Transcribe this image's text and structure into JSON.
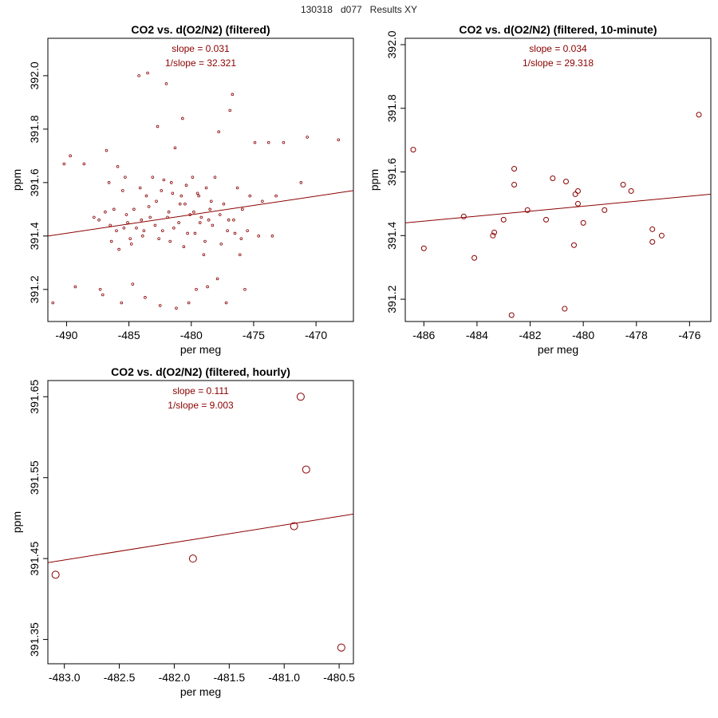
{
  "page_title": "130318   d077   Results XY",
  "colors": {
    "series": "#8b0000",
    "axes": "#000000",
    "background": "#ffffff"
  },
  "chart_data": [
    {
      "type": "scatter",
      "title": "CO2 vs. d(O2/N2) (filtered)",
      "xlabel": "per meg",
      "ylabel": "ppm",
      "xlim": [
        -491.5,
        -467.0
      ],
      "ylim": [
        391.08,
        392.14
      ],
      "xticks": [
        -490,
        -485,
        -480,
        -475,
        -470
      ],
      "yticks": [
        391.2,
        391.4,
        391.6,
        391.8,
        392.0
      ],
      "annotations": [
        "slope = 0.031",
        "1/slope = 32.321"
      ],
      "fit_line": {
        "x": [
          -491.5,
          -467.0
        ],
        "y": [
          391.4,
          391.57
        ]
      },
      "grid": false,
      "points": [
        [
          -491.1,
          391.15
        ],
        [
          -490.2,
          391.67
        ],
        [
          -489.7,
          391.7
        ],
        [
          -489.3,
          391.21
        ],
        [
          -488.6,
          391.67
        ],
        [
          -487.8,
          391.47
        ],
        [
          -487.4,
          391.46
        ],
        [
          -487.3,
          391.2
        ],
        [
          -487.1,
          391.18
        ],
        [
          -486.8,
          391.72
        ],
        [
          -486.6,
          391.6
        ],
        [
          -486.4,
          391.38
        ],
        [
          -486.2,
          391.5
        ],
        [
          -486.0,
          391.42
        ],
        [
          -485.9,
          391.66
        ],
        [
          -485.8,
          391.35
        ],
        [
          -485.6,
          391.15
        ],
        [
          -485.5,
          391.57
        ],
        [
          -485.3,
          391.62
        ],
        [
          -485.1,
          391.45
        ],
        [
          -484.9,
          391.39
        ],
        [
          -484.7,
          391.22
        ],
        [
          -484.6,
          391.5
        ],
        [
          -484.4,
          391.43
        ],
        [
          -484.2,
          392.0
        ],
        [
          -484.1,
          391.58
        ],
        [
          -483.9,
          391.4
        ],
        [
          -483.7,
          391.17
        ],
        [
          -483.6,
          391.55
        ],
        [
          -483.5,
          392.01
        ],
        [
          -483.3,
          391.47
        ],
        [
          -483.1,
          391.62
        ],
        [
          -482.9,
          391.44
        ],
        [
          -482.8,
          391.53
        ],
        [
          -482.7,
          391.81
        ],
        [
          -482.5,
          391.14
        ],
        [
          -482.3,
          391.42
        ],
        [
          -482.2,
          391.61
        ],
        [
          -482.0,
          391.97
        ],
        [
          -481.8,
          391.49
        ],
        [
          -481.7,
          391.38
        ],
        [
          -481.5,
          391.56
        ],
        [
          -481.3,
          391.73
        ],
        [
          -481.2,
          391.13
        ],
        [
          -481.0,
          391.45
        ],
        [
          -480.9,
          391.52
        ],
        [
          -480.7,
          391.84
        ],
        [
          -480.6,
          391.36
        ],
        [
          -480.4,
          391.59
        ],
        [
          -480.2,
          391.15
        ],
        [
          -480.1,
          391.48
        ],
        [
          -479.9,
          391.62
        ],
        [
          -479.7,
          391.41
        ],
        [
          -479.6,
          391.2
        ],
        [
          -479.4,
          391.55
        ],
        [
          -479.2,
          391.47
        ],
        [
          -479.0,
          391.33
        ],
        [
          -478.8,
          391.58
        ],
        [
          -478.7,
          391.21
        ],
        [
          -478.5,
          391.5
        ],
        [
          -478.3,
          391.44
        ],
        [
          -478.1,
          391.62
        ],
        [
          -477.9,
          391.24
        ],
        [
          -477.8,
          391.79
        ],
        [
          -477.6,
          391.37
        ],
        [
          -477.4,
          391.52
        ],
        [
          -477.2,
          391.15
        ],
        [
          -477.0,
          391.46
        ],
        [
          -476.9,
          391.87
        ],
        [
          -476.7,
          391.93
        ],
        [
          -476.5,
          391.41
        ],
        [
          -476.3,
          391.58
        ],
        [
          -476.1,
          391.33
        ],
        [
          -475.9,
          391.5
        ],
        [
          -475.7,
          391.2
        ],
        [
          -475.5,
          391.42
        ],
        [
          -475.3,
          391.55
        ],
        [
          -474.9,
          391.75
        ],
        [
          -474.6,
          391.4
        ],
        [
          -474.3,
          391.53
        ],
        [
          -473.8,
          391.75
        ],
        [
          -473.5,
          391.4
        ],
        [
          -473.2,
          391.55
        ],
        [
          -472.6,
          391.75
        ],
        [
          -471.2,
          391.6
        ],
        [
          -470.7,
          391.77
        ],
        [
          -468.2,
          391.76
        ],
        [
          -486.5,
          391.44
        ],
        [
          -485.2,
          391.48
        ],
        [
          -484.8,
          391.37
        ],
        [
          -484.0,
          391.46
        ],
        [
          -483.4,
          391.51
        ],
        [
          -482.6,
          391.39
        ],
        [
          -481.9,
          391.47
        ],
        [
          -481.4,
          391.43
        ],
        [
          -480.8,
          391.55
        ],
        [
          -480.3,
          391.41
        ],
        [
          -479.8,
          391.49
        ],
        [
          -479.3,
          391.45
        ],
        [
          -478.9,
          391.38
        ],
        [
          -478.4,
          391.53
        ],
        [
          -477.7,
          391.48
        ],
        [
          -477.1,
          391.42
        ],
        [
          -476.6,
          391.46
        ],
        [
          -476.0,
          391.39
        ],
        [
          -482.4,
          391.57
        ],
        [
          -481.6,
          391.6
        ],
        [
          -480.5,
          391.52
        ],
        [
          -479.5,
          391.56
        ],
        [
          -478.6,
          391.46
        ],
        [
          -483.8,
          391.42
        ],
        [
          -485.4,
          391.43
        ],
        [
          -486.9,
          391.49
        ]
      ]
    },
    {
      "type": "scatter",
      "title": "CO2 vs. d(O2/N2) (filtered, 10-minute)",
      "xlabel": "per meg",
      "ylabel": "ppm",
      "xlim": [
        -486.7,
        -475.2
      ],
      "ylim": [
        391.13,
        392.02
      ],
      "xticks": [
        -486,
        -484,
        -482,
        -480,
        -478,
        -476
      ],
      "yticks": [
        391.2,
        391.4,
        391.6,
        391.8,
        392.0
      ],
      "annotations": [
        "slope = 0.034",
        "1/slope = 29.318"
      ],
      "fit_line": {
        "x": [
          -486.7,
          -475.2
        ],
        "y": [
          391.44,
          391.53
        ]
      },
      "grid": false,
      "points": [
        [
          -486.4,
          391.67
        ],
        [
          -486.0,
          391.36
        ],
        [
          -484.5,
          391.46
        ],
        [
          -484.1,
          391.33
        ],
        [
          -483.4,
          391.4
        ],
        [
          -483.35,
          391.41
        ],
        [
          -483.0,
          391.45
        ],
        [
          -482.6,
          391.61
        ],
        [
          -482.6,
          391.56
        ],
        [
          -482.7,
          391.15
        ],
        [
          -482.1,
          391.48
        ],
        [
          -481.4,
          391.45
        ],
        [
          -481.15,
          391.58
        ],
        [
          -480.7,
          391.17
        ],
        [
          -480.65,
          391.57
        ],
        [
          -480.35,
          391.37
        ],
        [
          -480.3,
          391.53
        ],
        [
          -480.2,
          391.54
        ],
        [
          -480.2,
          391.5
        ],
        [
          -480.0,
          391.44
        ],
        [
          -479.2,
          391.48
        ],
        [
          -478.5,
          391.56
        ],
        [
          -478.2,
          391.54
        ],
        [
          -477.4,
          391.42
        ],
        [
          -477.4,
          391.38
        ],
        [
          -477.05,
          391.4
        ],
        [
          -475.65,
          391.78
        ]
      ]
    },
    {
      "type": "scatter",
      "title": "CO2 vs. d(O2/N2) (filtered, hourly)",
      "xlabel": "per meg",
      "ylabel": "ppm",
      "xlim": [
        -483.15,
        -480.37
      ],
      "ylim": [
        391.32,
        391.67
      ],
      "xticks": [
        -483.0,
        -482.5,
        -482.0,
        -481.5,
        -481.0,
        -480.5
      ],
      "ytick_labels": [
        "391.35",
        "391.45",
        "391.55",
        "391.65"
      ],
      "yticks": [
        391.35,
        391.45,
        391.55,
        391.65
      ],
      "annotations": [
        "slope = 0.111",
        "1/slope = 9.003"
      ],
      "fit_line": {
        "x": [
          -483.15,
          -480.37
        ],
        "y": [
          391.445,
          391.505
        ]
      },
      "grid": false,
      "points": [
        [
          -483.08,
          391.43
        ],
        [
          -481.83,
          391.45
        ],
        [
          -480.91,
          391.49
        ],
        [
          -480.85,
          391.65
        ],
        [
          -480.8,
          391.56
        ],
        [
          -480.48,
          391.34
        ]
      ]
    }
  ]
}
